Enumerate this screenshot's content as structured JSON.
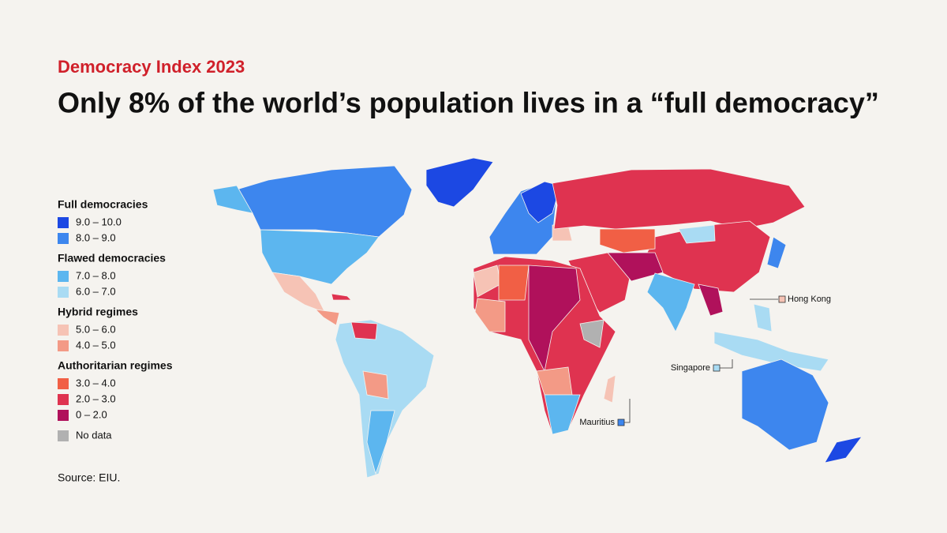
{
  "header": {
    "kicker": "Democracy Index 2023",
    "title": "Only 8% of the world’s population lives in a “full democracy”"
  },
  "legend": {
    "groups": [
      {
        "title": "Full democracies",
        "items": [
          {
            "label": "9.0 – 10.0",
            "color": "#1c48e3"
          },
          {
            "label": "8.0 – 9.0",
            "color": "#3d86ee"
          }
        ]
      },
      {
        "title": "Flawed democracies",
        "items": [
          {
            "label": "7.0 – 8.0",
            "color": "#5cb6ef"
          },
          {
            "label": "6.0 – 7.0",
            "color": "#a9dbf3"
          }
        ]
      },
      {
        "title": "Hybrid regimes",
        "items": [
          {
            "label": "5.0 – 6.0",
            "color": "#f6c3b5"
          },
          {
            "label": "4.0 – 5.0",
            "color": "#f39a86"
          }
        ]
      },
      {
        "title": "Authoritarian regimes",
        "items": [
          {
            "label": "3.0 – 4.0",
            "color": "#f15f45"
          },
          {
            "label": "2.0 – 3.0",
            "color": "#df3350"
          },
          {
            "label": "0 – 2.0",
            "color": "#b0115b"
          }
        ]
      }
    ],
    "no_data": {
      "label": "No data",
      "color": "#b1b1b1"
    }
  },
  "callouts": [
    "Hong Kong",
    "Singapore",
    "Mauritius"
  ],
  "source": "Source: EIU."
}
